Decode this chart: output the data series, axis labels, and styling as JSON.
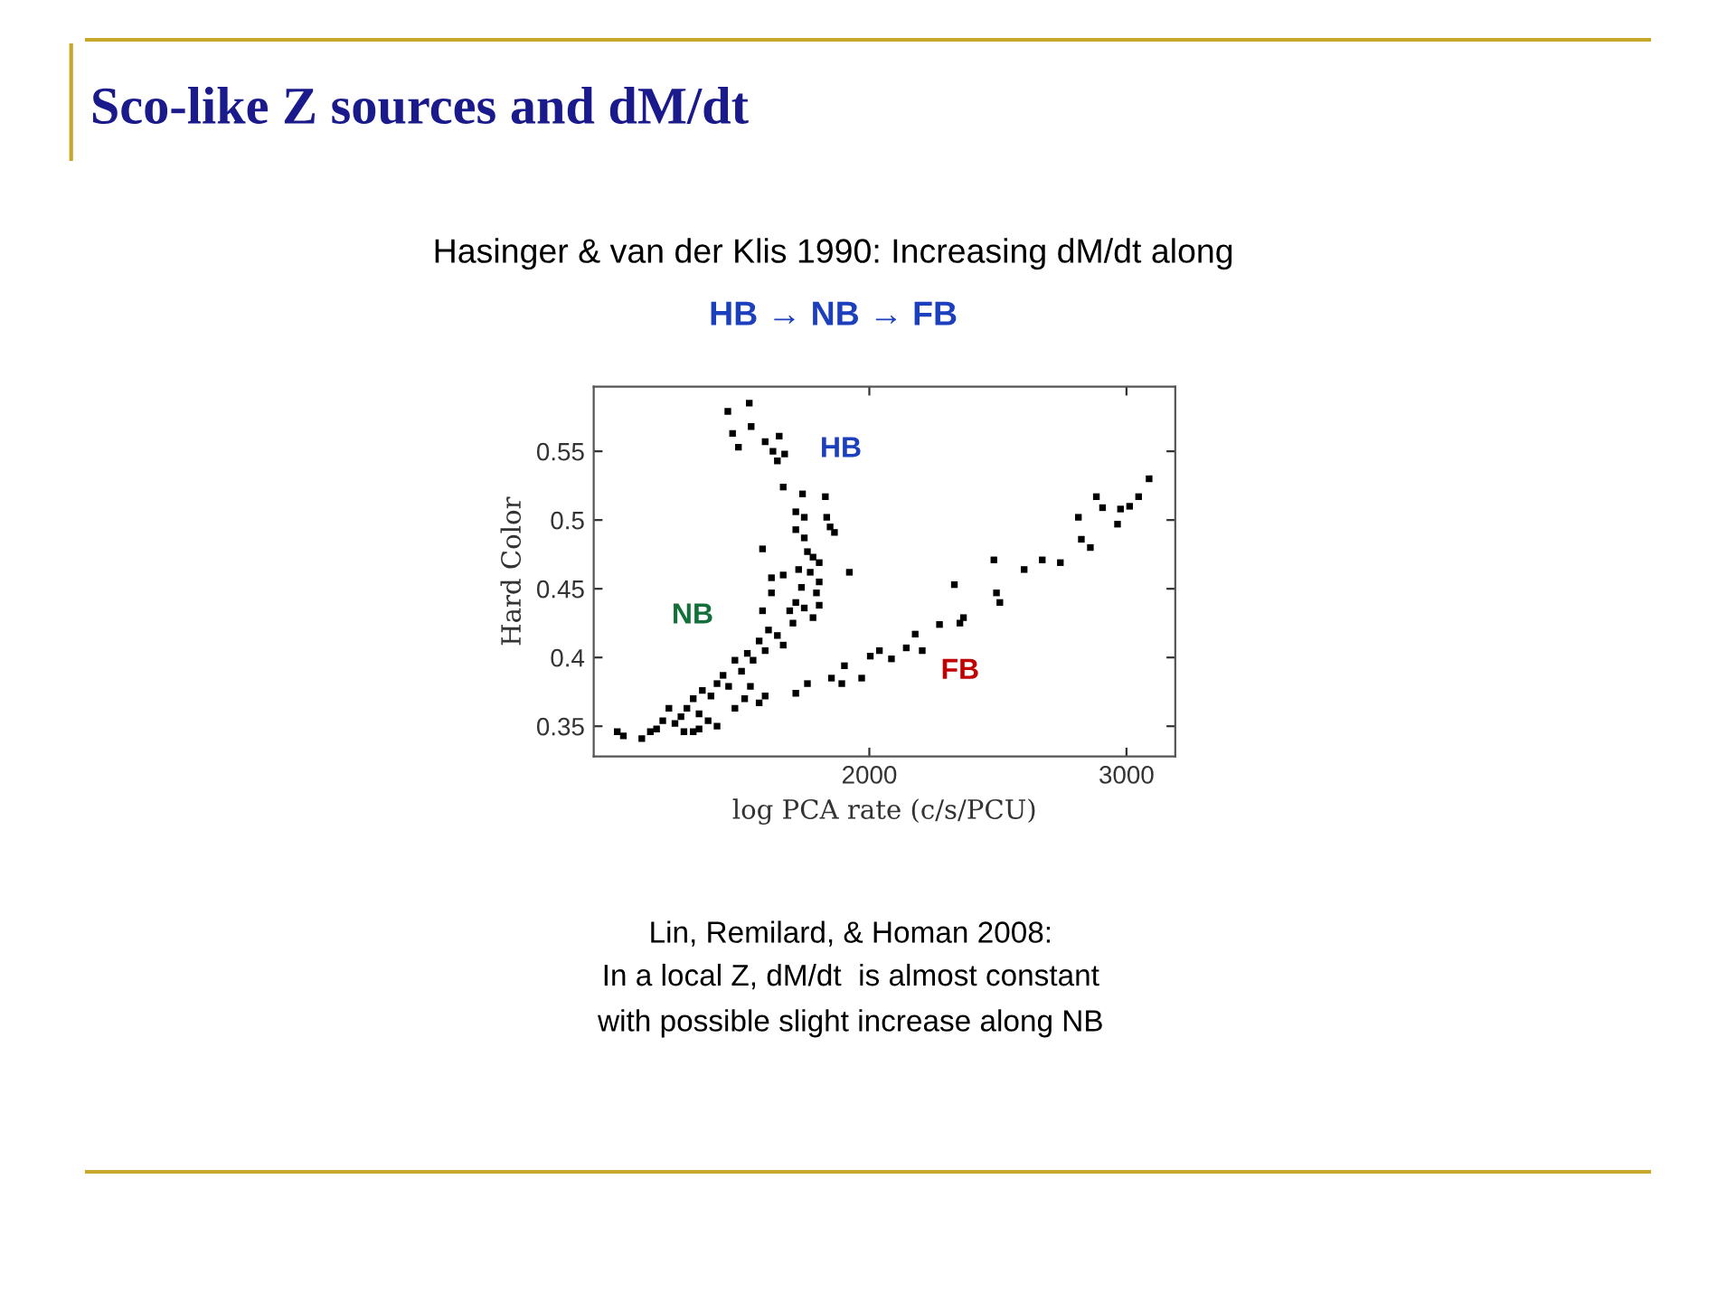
{
  "chart_data": {
    "type": "scatter",
    "title": "Sco-like Z sources and dM/dt",
    "subtitle": "Hasinger & van der Klis 1990: Increasing dM/dt along",
    "xlabel": "log PCA rate (c/s/PCU)",
    "ylabel": "Hard Color",
    "log": "x",
    "xlim": [
      1295,
      3240
    ],
    "xticks": [
      2000,
      3000
    ],
    "ylim": [
      0.328,
      0.597
    ],
    "yticks": [
      0.35,
      0.4,
      0.45,
      0.5,
      0.55
    ],
    "grid": false,
    "legend": false,
    "marker": "square",
    "series": [
      {
        "color": "#000000",
        "x": [
          1600,
          1655,
          1660,
          1612,
          1627,
          1697,
          1735,
          1718,
          1730,
          1750,
          1746,
          1800,
          1866,
          1781,
          1805,
          1870,
          1880,
          1893,
          1781,
          1805,
          1690,
          1938,
          1814,
          1830,
          1848,
          1822,
          1789,
          1746,
          1714,
          1848,
          1797,
          1714,
          1840,
          1781,
          1805,
          1848,
          1764,
          1830,
          1690,
          1706,
          1773,
          1730,
          1681,
          1746,
          1697,
          1650,
          1665,
          1618,
          1635,
          1588,
          1573,
          1602,
          1558,
          1537,
          1515,
          1500,
          1529,
          1551,
          1486,
          1472,
          1515,
          1493,
          1529,
          1573,
          1458,
          1416,
          1430,
          1397,
          1344,
          1357,
          1444,
          1618,
          1643,
          1658,
          1697,
          1681,
          1781,
          1814,
          1884,
          1915,
          1976,
          1923,
          2003,
          2032,
          2071,
          2120,
          2150,
          2174,
          2234,
          2287,
          2307,
          2320,
          2434,
          2444,
          2457,
          2553,
          2627,
          2703,
          2781,
          2794,
          2834,
          2861,
          2889,
          2958,
          2972,
          3015,
          3058,
          3109
        ],
        "values": [
          0.579,
          0.585,
          0.568,
          0.563,
          0.553,
          0.557,
          0.561,
          0.55,
          0.543,
          0.548,
          0.524,
          0.519,
          0.517,
          0.506,
          0.502,
          0.502,
          0.495,
          0.491,
          0.493,
          0.487,
          0.479,
          0.462,
          0.477,
          0.473,
          0.469,
          0.462,
          0.464,
          0.46,
          0.458,
          0.455,
          0.451,
          0.447,
          0.447,
          0.44,
          0.436,
          0.438,
          0.434,
          0.429,
          0.434,
          0.42,
          0.425,
          0.416,
          0.412,
          0.409,
          0.405,
          0.403,
          0.398,
          0.398,
          0.39,
          0.387,
          0.381,
          0.379,
          0.372,
          0.376,
          0.37,
          0.363,
          0.359,
          0.354,
          0.357,
          0.352,
          0.346,
          0.346,
          0.348,
          0.35,
          0.363,
          0.346,
          0.348,
          0.341,
          0.346,
          0.343,
          0.354,
          0.363,
          0.37,
          0.379,
          0.372,
          0.367,
          0.374,
          0.381,
          0.385,
          0.381,
          0.385,
          0.394,
          0.401,
          0.405,
          0.399,
          0.407,
          0.417,
          0.405,
          0.424,
          0.453,
          0.425,
          0.429,
          0.471,
          0.447,
          0.44,
          0.464,
          0.471,
          0.469,
          0.502,
          0.486,
          0.48,
          0.517,
          0.509,
          0.497,
          0.508,
          0.51,
          0.517,
          0.53
        ]
      }
    ],
    "annotations": [
      "HB",
      "NB",
      "FB",
      "HB → NB → FB",
      "Lin, Remilard, & Homan 2008:",
      "In a local Z, dM/dt  is almost constant",
      "with possible slight increase along NB"
    ]
  }
}
